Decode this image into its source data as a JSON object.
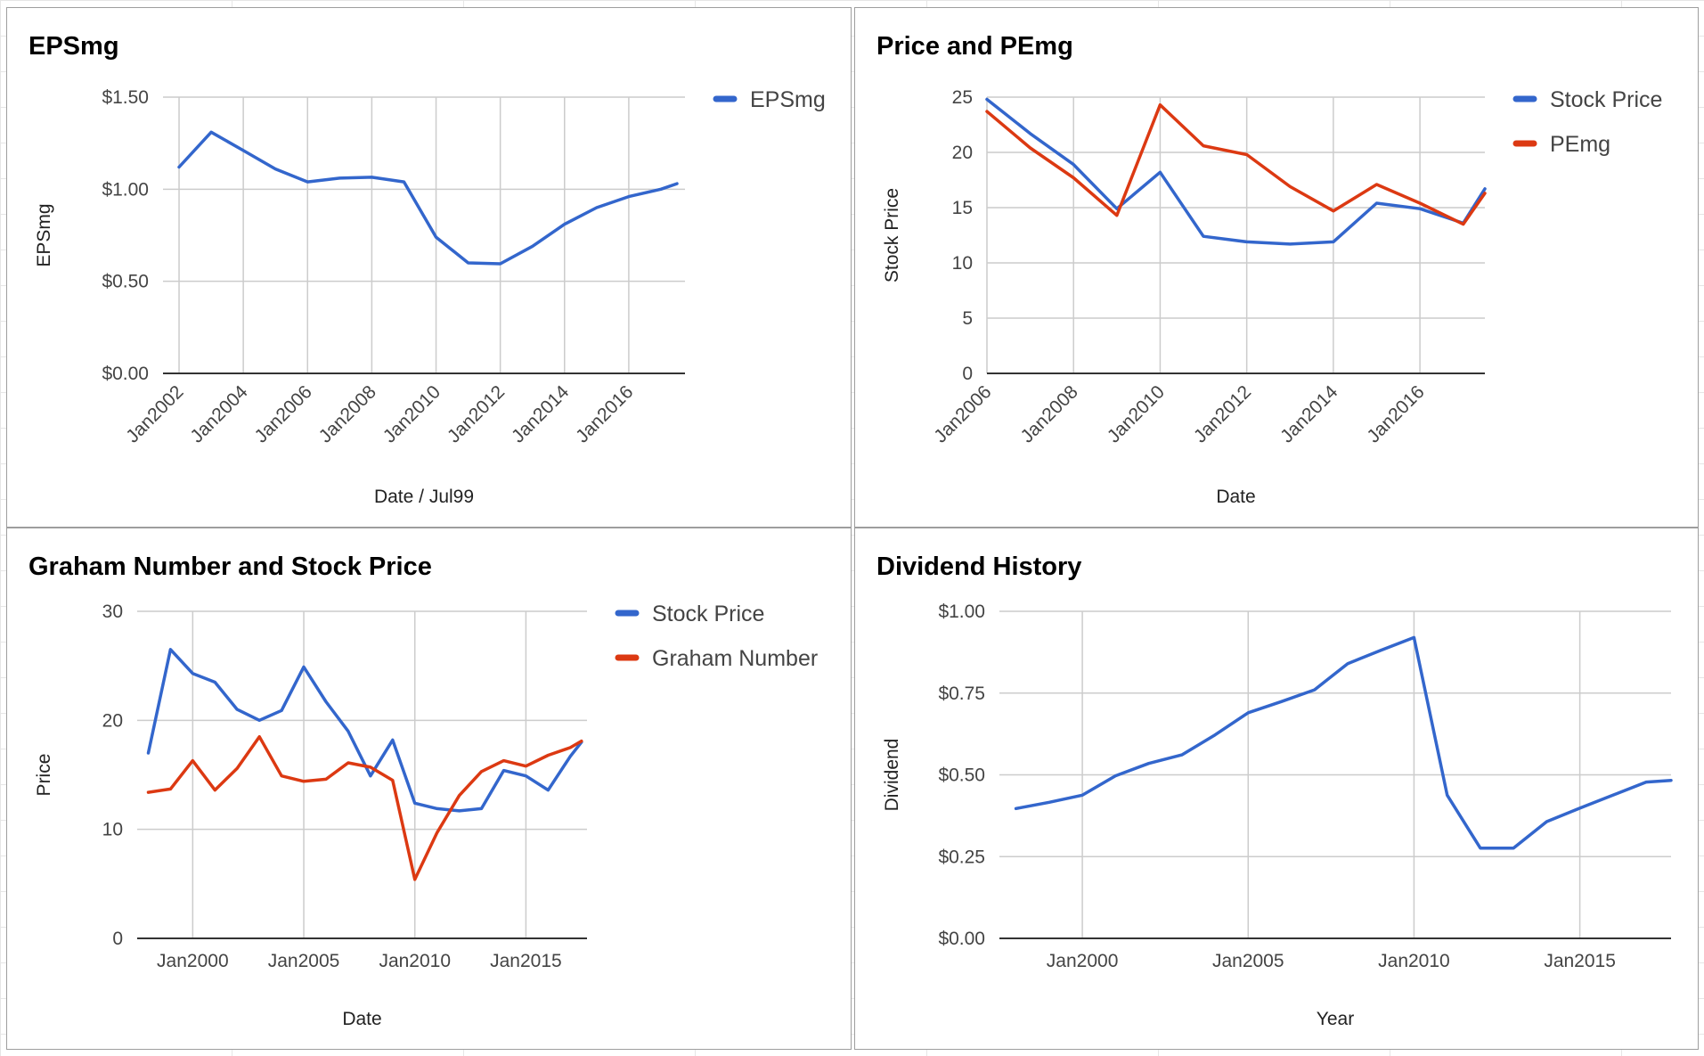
{
  "chart_data": [
    {
      "id": "eps",
      "type": "line",
      "title": "EPSmg",
      "xlabel": "Date / Jul99",
      "ylabel": "EPSmg",
      "x_axis": "date",
      "xlim": [
        2001.5,
        2017.75
      ],
      "ylim": [
        0,
        1.5
      ],
      "xticks": [
        2002,
        2004,
        2006,
        2008,
        2010,
        2012,
        2014,
        2016
      ],
      "xtick_labels": [
        "Jan2002",
        "Jan2004",
        "Jan2006",
        "Jan2008",
        "Jan2010",
        "Jan2012",
        "Jan2014",
        "Jan2016"
      ],
      "x_label_rotation": "-45deg",
      "yticks": [
        0,
        0.5,
        1.0,
        1.5
      ],
      "ytick_labels": [
        "$0.00",
        "$0.50",
        "$1.00",
        "$1.50"
      ],
      "grid": "on",
      "legend": "right",
      "series": [
        {
          "name": "EPSmg",
          "color": "#3366cc",
          "x": [
            2002,
            2003,
            2004,
            2005,
            2006,
            2007,
            2008,
            2009,
            2010,
            2011,
            2012,
            2013,
            2014,
            2015,
            2016,
            2017,
            2017.5
          ],
          "y": [
            1.12,
            1.31,
            1.21,
            1.11,
            1.04,
            1.06,
            1.065,
            1.04,
            0.74,
            0.6,
            0.595,
            0.69,
            0.81,
            0.9,
            0.96,
            1.0,
            1.03
          ]
        }
      ]
    },
    {
      "id": "price-pe",
      "type": "line",
      "title": "Price and PEmg",
      "xlabel": "Date",
      "ylabel": "Stock Price",
      "x_axis": "date",
      "xlim": [
        2006,
        2017.5
      ],
      "ylim": [
        0,
        25
      ],
      "xticks": [
        2006,
        2008,
        2010,
        2012,
        2014,
        2016
      ],
      "xtick_labels": [
        "Jan2006",
        "Jan2008",
        "Jan2010",
        "Jan2012",
        "Jan2014",
        "Jan2016"
      ],
      "x_label_rotation": "-45deg",
      "yticks": [
        0,
        5,
        10,
        15,
        20,
        25
      ],
      "ytick_labels": [
        "0",
        "5",
        "10",
        "15",
        "20",
        "25"
      ],
      "grid": "on",
      "legend": "right",
      "series": [
        {
          "name": "Stock Price",
          "color": "#3366cc",
          "x": [
            2006,
            2007,
            2008,
            2009,
            2010,
            2011,
            2012,
            2013,
            2014,
            2015,
            2016,
            2017,
            2017.5
          ],
          "y": [
            24.8,
            21.7,
            18.9,
            14.9,
            18.2,
            12.4,
            11.9,
            11.7,
            11.9,
            15.4,
            14.9,
            13.6,
            16.7
          ]
        },
        {
          "name": "PEmg",
          "color": "#dc3912",
          "x": [
            2006,
            2007,
            2008,
            2009,
            2010,
            2011,
            2012,
            2013,
            2014,
            2015,
            2016,
            2017,
            2017.5
          ],
          "y": [
            23.7,
            20.4,
            17.7,
            14.3,
            24.3,
            20.6,
            19.8,
            16.9,
            14.7,
            17.1,
            15.4,
            13.5,
            16.3
          ]
        }
      ]
    },
    {
      "id": "graham",
      "type": "line",
      "title": "Graham Number and Stock Price",
      "xlabel": "Date",
      "ylabel": "Price",
      "x_axis": "date",
      "xlim": [
        1997.5,
        2017.75
      ],
      "ylim": [
        0,
        30
      ],
      "xticks": [
        2000,
        2005,
        2010,
        2015
      ],
      "xtick_labels": [
        "Jan2000",
        "Jan2005",
        "Jan2010",
        "Jan2015"
      ],
      "x_label_rotation": "0deg",
      "yticks": [
        0,
        10,
        20,
        30
      ],
      "ytick_labels": [
        "0",
        "10",
        "20",
        "30"
      ],
      "grid": "on",
      "legend": "right",
      "series": [
        {
          "name": "Stock Price",
          "color": "#3366cc",
          "x": [
            1998,
            1999,
            2000,
            2001,
            2002,
            2003,
            2004,
            2005,
            2006,
            2007,
            2008,
            2009,
            2010,
            2011,
            2012,
            2013,
            2014,
            2015,
            2016,
            2017,
            2017.5
          ],
          "y": [
            17.0,
            26.5,
            24.3,
            23.5,
            21.0,
            20.0,
            20.9,
            24.9,
            21.7,
            19.0,
            14.9,
            18.2,
            12.4,
            11.9,
            11.7,
            11.9,
            15.4,
            14.9,
            13.6,
            16.7,
            18.0
          ]
        },
        {
          "name": "Graham Number",
          "color": "#dc3912",
          "x": [
            1998,
            1999,
            2000,
            2001,
            2002,
            2003,
            2004,
            2005,
            2006,
            2007,
            2008,
            2009,
            2010,
            2011,
            2012,
            2013,
            2014,
            2015,
            2016,
            2017,
            2017.5
          ],
          "y": [
            13.4,
            13.7,
            16.3,
            13.6,
            15.6,
            18.5,
            14.9,
            14.4,
            14.6,
            16.1,
            15.7,
            14.5,
            5.4,
            9.7,
            13.1,
            15.3,
            16.3,
            15.8,
            16.8,
            17.5,
            18.1
          ]
        }
      ]
    },
    {
      "id": "dividend",
      "type": "line",
      "title": "Dividend History",
      "xlabel": "Year",
      "ylabel": "Dividend",
      "x_axis": "date",
      "xlim": [
        1997.5,
        2017.75
      ],
      "ylim": [
        0,
        1.0
      ],
      "xticks": [
        2000,
        2005,
        2010,
        2015
      ],
      "xtick_labels": [
        "Jan2000",
        "Jan2005",
        "Jan2010",
        "Jan2015"
      ],
      "x_label_rotation": "0deg",
      "yticks": [
        0,
        0.25,
        0.5,
        0.75,
        1.0
      ],
      "ytick_labels": [
        "$0.00",
        "$0.25",
        "$0.50",
        "$0.75",
        "$1.00"
      ],
      "grid": "on",
      "legend": "none",
      "series": [
        {
          "color": "#3366cc",
          "x": [
            1998,
            1999,
            2000,
            2001,
            2002,
            2003,
            2004,
            2005,
            2006,
            2007,
            2008,
            2009,
            2010,
            2011,
            2012,
            2013,
            2014,
            2015,
            2016,
            2017,
            2017.75
          ],
          "y": [
            0.397,
            0.416,
            0.438,
            0.497,
            0.535,
            0.561,
            0.622,
            0.69,
            0.724,
            0.76,
            0.84,
            0.881,
            0.92,
            0.438,
            0.276,
            0.276,
            0.357,
            0.398,
            0.438,
            0.478,
            0.483
          ]
        }
      ]
    }
  ]
}
